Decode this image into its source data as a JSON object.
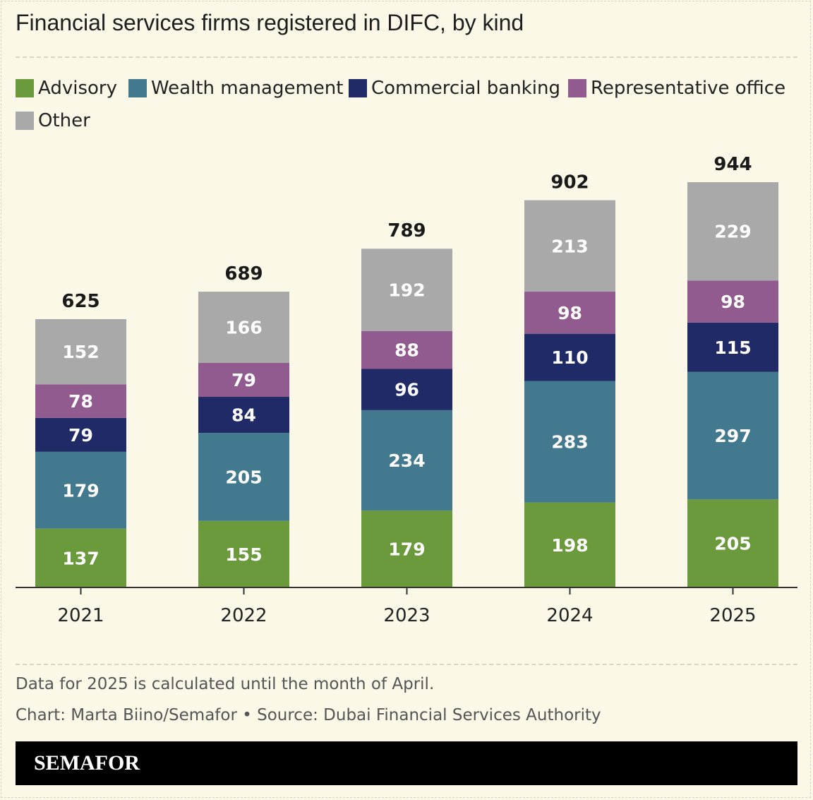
{
  "title": "Financial services firms registered in DIFC, by kind",
  "legend": [
    {
      "label": "Advisory",
      "color": "#6b9a3c"
    },
    {
      "label": "Wealth management",
      "color": "#42798e"
    },
    {
      "label": "Commercial banking",
      "color": "#1f2a66"
    },
    {
      "label": "Representative office",
      "color": "#915b90"
    },
    {
      "label": "Other",
      "color": "#a9a9a9"
    }
  ],
  "chart_data": {
    "type": "bar",
    "stacked": true,
    "categories": [
      "2021",
      "2022",
      "2023",
      "2024",
      "2025"
    ],
    "series": [
      {
        "name": "Advisory",
        "color": "#6b9a3c",
        "values": [
          137,
          155,
          179,
          198,
          205
        ]
      },
      {
        "name": "Wealth management",
        "color": "#42798e",
        "values": [
          179,
          205,
          234,
          283,
          297
        ]
      },
      {
        "name": "Commercial banking",
        "color": "#1f2a66",
        "values": [
          79,
          84,
          96,
          110,
          115
        ]
      },
      {
        "name": "Representative office",
        "color": "#915b90",
        "values": [
          78,
          79,
          88,
          98,
          98
        ]
      },
      {
        "name": "Other",
        "color": "#a9a9a9",
        "values": [
          152,
          166,
          192,
          213,
          229
        ]
      }
    ],
    "totals": [
      625,
      689,
      789,
      902,
      944
    ],
    "ylim": [
      0,
      944
    ],
    "grid": false,
    "legend_position": "top-left",
    "xlabel": "",
    "ylabel": ""
  },
  "footnotes": {
    "note": "Data for 2025 is calculated until the month of April.",
    "credit": "Chart: Marta Biino/Semafor • Source: Dubai Financial Services Authority"
  },
  "brand": "SEMAFOR"
}
